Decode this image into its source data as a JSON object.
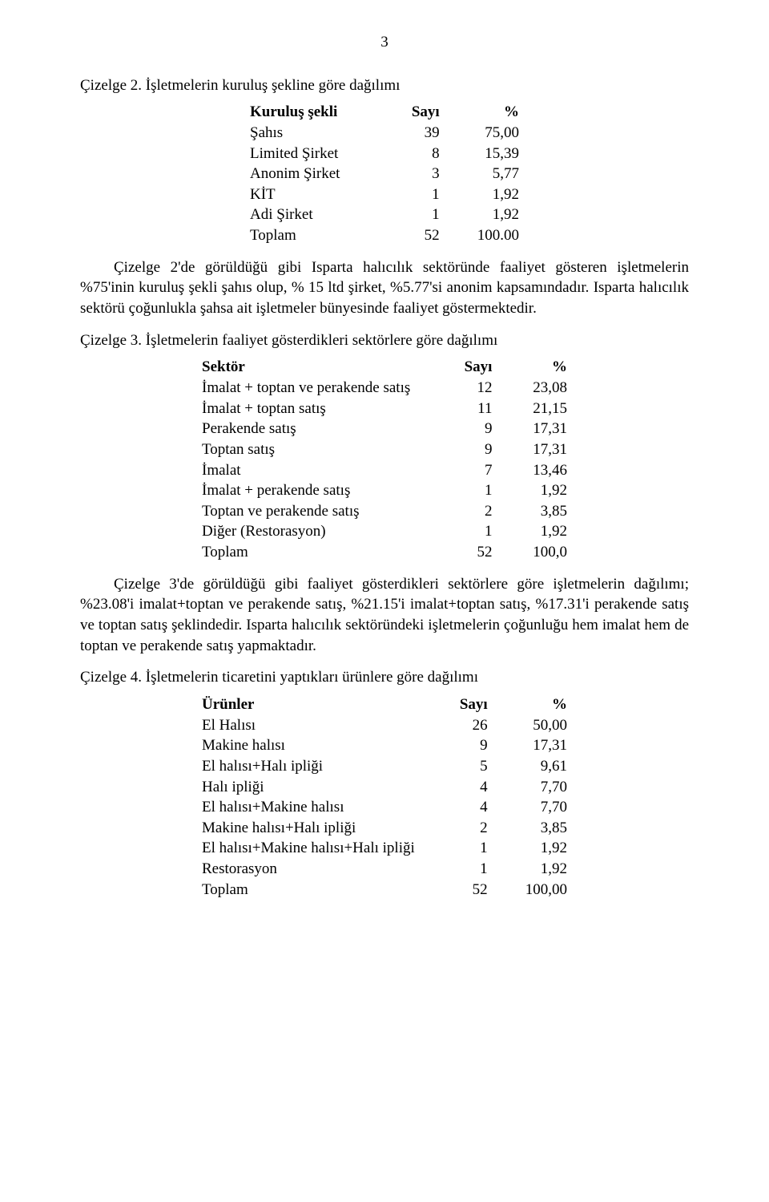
{
  "page_number": "3",
  "colors": {
    "text": "#000000",
    "background": "#ffffff"
  },
  "typography": {
    "font_family": "Times New Roman",
    "body_fontsize_pt": 14,
    "line_height": 1.35
  },
  "section1": {
    "title": "Çizelge 2. İşletmelerin kuruluş şekline göre dağılımı",
    "table": {
      "type": "table",
      "columns": [
        "Kuruluş şekli",
        "Sayı",
        "%"
      ],
      "rows": [
        [
          "Şahıs",
          "39",
          "75,00"
        ],
        [
          "Limited Şirket",
          "8",
          "15,39"
        ],
        [
          "Anonim Şirket",
          "3",
          "5,77"
        ],
        [
          "KİT",
          "1",
          "1,92"
        ],
        [
          "Adi Şirket",
          "1",
          "1,92"
        ],
        [
          "Toplam",
          "52",
          "100.00"
        ]
      ],
      "col_align": [
        "left",
        "right",
        "right"
      ]
    },
    "paragraph": "Çizelge 2'de görüldüğü gibi Isparta halıcılık sektöründe faaliyet gösteren işletmelerin %75'inin kuruluş şekli şahıs olup, % 15 ltd şirket, %5.77'si anonim kapsamındadır. Isparta halıcılık sektörü çoğunlukla şahsa ait işletmeler bünyesinde faaliyet göstermektedir."
  },
  "section2": {
    "title": "Çizelge 3. İşletmelerin faaliyet gösterdikleri sektörlere göre dağılımı",
    "table": {
      "type": "table",
      "columns": [
        "Sektör",
        "Sayı",
        "%"
      ],
      "rows": [
        [
          "İmalat + toptan ve perakende satış",
          "12",
          "23,08"
        ],
        [
          "İmalat + toptan satış",
          "11",
          "21,15"
        ],
        [
          "Perakende satış",
          "9",
          "17,31"
        ],
        [
          "Toptan satış",
          "9",
          "17,31"
        ],
        [
          "İmalat",
          "7",
          "13,46"
        ],
        [
          "İmalat + perakende satış",
          "1",
          "1,92"
        ],
        [
          "Toptan ve perakende satış",
          "2",
          "3,85"
        ],
        [
          "Diğer (Restorasyon)",
          "1",
          "1,92"
        ],
        [
          "Toplam",
          "52",
          "100,0"
        ]
      ],
      "col_align": [
        "left",
        "right",
        "right"
      ]
    },
    "paragraph": "Çizelge 3'de görüldüğü gibi faaliyet gösterdikleri sektörlere göre işletmelerin dağılımı; %23.08'i imalat+toptan ve perakende satış, %21.15'i imalat+toptan satış, %17.31'i perakende satış ve toptan satış şeklindedir. Isparta halıcılık sektöründeki işletmelerin çoğunluğu hem imalat hem de toptan ve perakende satış yapmaktadır."
  },
  "section3": {
    "title": "Çizelge 4. İşletmelerin ticaretini yaptıkları ürünlere göre dağılımı",
    "table": {
      "type": "table",
      "columns": [
        "Ürünler",
        "Sayı",
        "%"
      ],
      "rows": [
        [
          "El Halısı",
          "26",
          "50,00"
        ],
        [
          "Makine halısı",
          "9",
          "17,31"
        ],
        [
          "El halısı+Halı ipliği",
          "5",
          "9,61"
        ],
        [
          "Halı ipliği",
          "4",
          "7,70"
        ],
        [
          "El halısı+Makine halısı",
          "4",
          "7,70"
        ],
        [
          "Makine halısı+Halı ipliği",
          "2",
          "3,85"
        ],
        [
          "El halısı+Makine halısı+Halı ipliği",
          "1",
          "1,92"
        ],
        [
          "Restorasyon",
          "1",
          "1,92"
        ],
        [
          "Toplam",
          "52",
          "100,00"
        ]
      ],
      "col_align": [
        "left",
        "right",
        "right"
      ]
    }
  }
}
